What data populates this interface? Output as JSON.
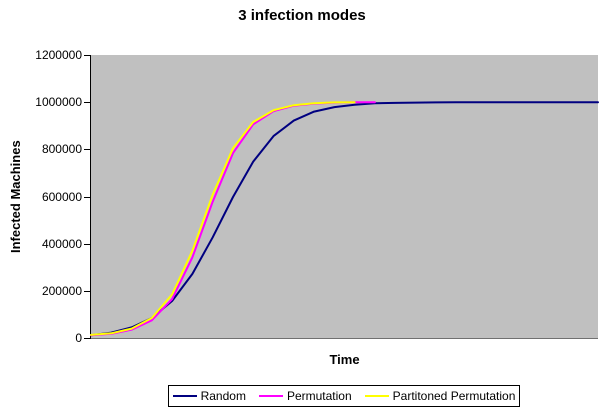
{
  "title": "3 infection modes",
  "y_axis": {
    "title": "Infected Machines",
    "tick_labels": [
      "1200000",
      "1000000",
      "800000",
      "600000",
      "400000",
      "200000",
      "0"
    ],
    "min": 0,
    "max": 1200000
  },
  "x_axis": {
    "title": "Time",
    "tick_labels": []
  },
  "legend": {
    "items": [
      {
        "label": "Random",
        "color": "#000080"
      },
      {
        "label": "Permutation",
        "color": "#FF00FF"
      },
      {
        "label": "Partitoned Permutation",
        "color": "#FFFF00"
      }
    ]
  },
  "colors": {
    "background": "#FFFFFF",
    "plot_area_bg": "#C0C0C0",
    "axis_line": "#000000",
    "plot_bottom_border": "#707070"
  },
  "chart_data": {
    "type": "line",
    "title": "3 infection modes",
    "xlabel": "Time",
    "ylabel": "Infected Machines",
    "ylim": [
      0,
      1200000
    ],
    "xlim": [
      0,
      100
    ],
    "grid": false,
    "legend_position": "bottom",
    "plot_area_bg": "#C0C0C0",
    "x_note": "Time axis has no numeric tick labels; x given in 0-100 relative units",
    "series": [
      {
        "name": "Random",
        "color": "#000080",
        "points": [
          [
            0,
            12000
          ],
          [
            4,
            23000
          ],
          [
            8,
            45000
          ],
          [
            12,
            85000
          ],
          [
            16,
            157000
          ],
          [
            20,
            272000
          ],
          [
            24,
            427000
          ],
          [
            28,
            598000
          ],
          [
            32,
            748000
          ],
          [
            36,
            856000
          ],
          [
            40,
            922000
          ],
          [
            44,
            960000
          ],
          [
            48,
            979000
          ],
          [
            52,
            989000
          ],
          [
            56,
            995000
          ],
          [
            60,
            997000
          ],
          [
            64,
            998000
          ],
          [
            68,
            999000
          ],
          [
            72,
            999500
          ],
          [
            76,
            1000000
          ],
          [
            80,
            1000000
          ],
          [
            84,
            1000000
          ],
          [
            88,
            1000000
          ],
          [
            92,
            1000000
          ],
          [
            96,
            1000000
          ],
          [
            100,
            1000000
          ]
        ]
      },
      {
        "name": "Permutation",
        "color": "#FF00FF",
        "points": [
          [
            0,
            12000
          ],
          [
            4,
            18000
          ],
          [
            8,
            35000
          ],
          [
            12,
            75000
          ],
          [
            16,
            165000
          ],
          [
            20,
            342000
          ],
          [
            24,
            578000
          ],
          [
            28,
            784000
          ],
          [
            32,
            906000
          ],
          [
            36,
            962000
          ],
          [
            40,
            985000
          ],
          [
            44,
            994000
          ],
          [
            48,
            998000
          ],
          [
            52,
            999500
          ],
          [
            56,
            1000000
          ]
        ]
      },
      {
        "name": "Partitoned Permutation",
        "color": "#FFFF00",
        "points": [
          [
            0,
            13000
          ],
          [
            4,
            20000
          ],
          [
            8,
            40000
          ],
          [
            12,
            85000
          ],
          [
            16,
            185000
          ],
          [
            20,
            370000
          ],
          [
            24,
            608000
          ],
          [
            28,
            805000
          ],
          [
            32,
            916000
          ],
          [
            36,
            966000
          ],
          [
            40,
            987000
          ],
          [
            44,
            995000
          ],
          [
            48,
            999000
          ],
          [
            52,
            1000000
          ]
        ]
      }
    ]
  }
}
